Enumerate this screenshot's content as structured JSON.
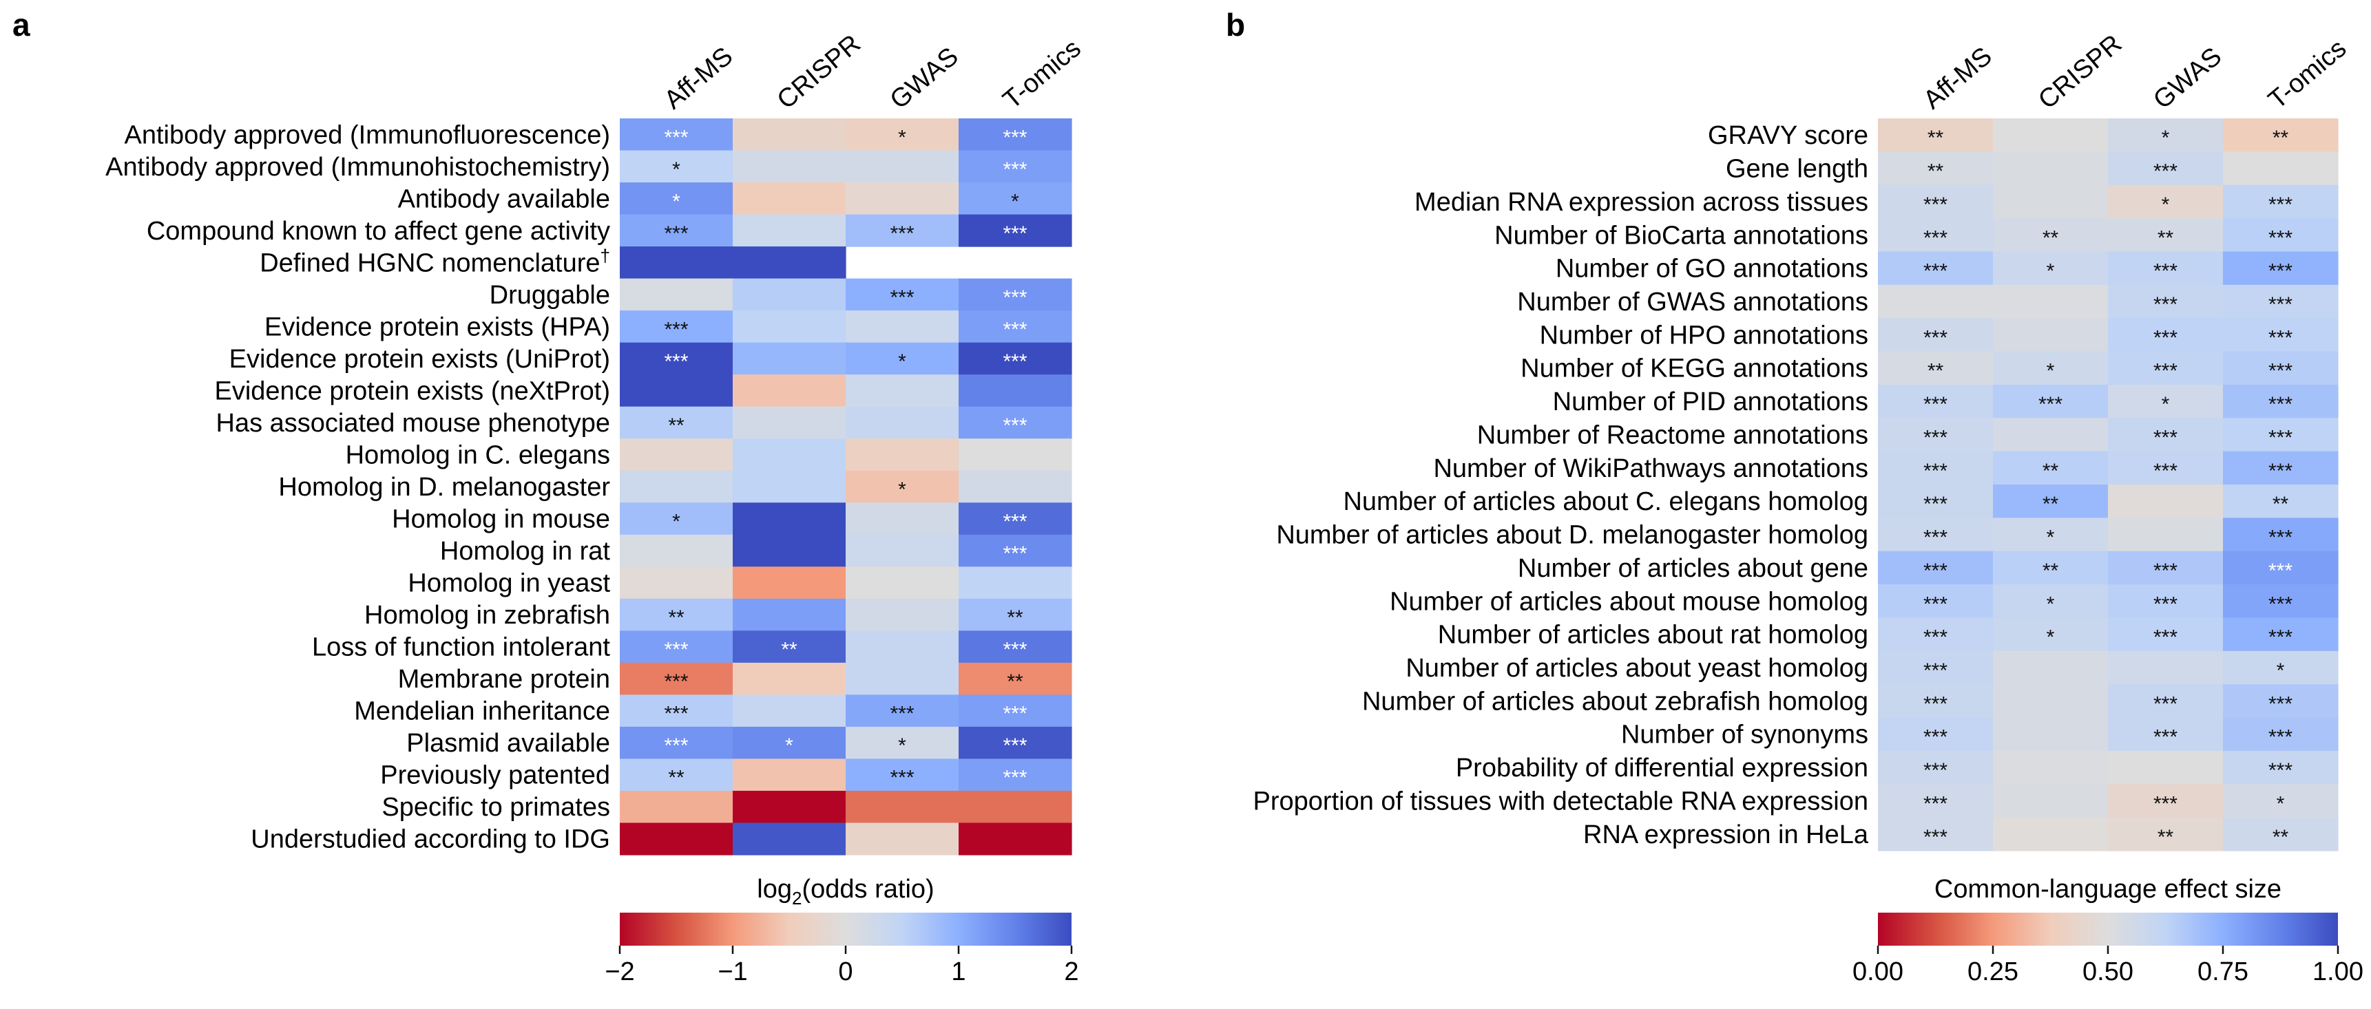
{
  "chart_data": [
    {
      "type": "heatmap",
      "panel_label": "a",
      "columns": [
        "Aff-MS",
        "CRISPR",
        "GWAS",
        "T-omics"
      ],
      "rows": [
        "Antibody approved (Immunofluorescence)",
        "Antibody approved (Immunohistochemistry)",
        "Antibody available",
        "Compound known to affect gene activity",
        "Defined HGNC nomenclature",
        "Druggable",
        "Evidence protein exists (HPA)",
        "Evidence protein exists (UniProt)",
        "Evidence protein exists (neXtProt)",
        "Has associated mouse phenotype",
        "Homolog in C. elegans",
        "Homolog in D. melanogaster",
        "Homolog in mouse",
        "Homolog in rat",
        "Homolog in yeast",
        "Homolog in zebrafish",
        "Loss of function intolerant",
        "Membrane protein",
        "Mendelian inheritance",
        "Plasmid available",
        "Previously patented",
        "Specific to primates",
        "Understudied according to IDG"
      ],
      "row_superscripts": {
        "Defined HGNC nomenclature": "†"
      },
      "values": [
        [
          1.2,
          -0.3,
          -0.4,
          1.4
        ],
        [
          0.5,
          0.2,
          0.2,
          1.2
        ],
        [
          1.3,
          -0.5,
          -0.2,
          1.1
        ],
        [
          1.1,
          0.3,
          0.8,
          2.0
        ],
        [
          2.0,
          2.0,
          null,
          null
        ],
        [
          0.1,
          0.6,
          1.0,
          1.3
        ],
        [
          1.0,
          0.5,
          0.3,
          1.2
        ],
        [
          2.0,
          0.9,
          1.0,
          2.0
        ],
        [
          2.0,
          -0.6,
          0.3,
          1.5
        ],
        [
          0.6,
          0.2,
          0.4,
          1.2
        ],
        [
          -0.2,
          0.5,
          -0.4,
          0.0
        ],
        [
          0.3,
          0.5,
          -0.6,
          0.2
        ],
        [
          0.8,
          2.0,
          0.2,
          1.7
        ],
        [
          0.1,
          2.0,
          0.3,
          1.4
        ],
        [
          -0.1,
          -1.0,
          0.0,
          0.5
        ],
        [
          0.7,
          1.2,
          0.2,
          0.8
        ],
        [
          1.2,
          1.8,
          0.4,
          1.6
        ],
        [
          -1.2,
          -0.5,
          0.4,
          -1.1
        ],
        [
          0.6,
          0.4,
          1.1,
          1.2
        ],
        [
          1.3,
          1.4,
          0.2,
          1.9
        ],
        [
          0.6,
          -0.6,
          1.0,
          1.2
        ],
        [
          -0.8,
          -2.0,
          -1.3,
          -1.3
        ],
        [
          -2.0,
          1.9,
          -0.3,
          -2.0
        ]
      ],
      "annotations": [
        [
          "***",
          "",
          "*",
          "***"
        ],
        [
          "*",
          "",
          "",
          "***"
        ],
        [
          "*",
          "",
          "",
          "*"
        ],
        [
          "***",
          "",
          "***",
          "***"
        ],
        [
          "",
          "",
          "",
          ""
        ],
        [
          "",
          "",
          "***",
          "***"
        ],
        [
          "***",
          "",
          "",
          "***"
        ],
        [
          "***",
          "",
          "*",
          "***"
        ],
        [
          "",
          "",
          "",
          ""
        ],
        [
          "**",
          "",
          "",
          "***"
        ],
        [
          "",
          "",
          "",
          ""
        ],
        [
          "",
          "",
          "*",
          ""
        ],
        [
          "*",
          "",
          "",
          "***"
        ],
        [
          "",
          "",
          "",
          "***"
        ],
        [
          "",
          "",
          "",
          ""
        ],
        [
          "**",
          "",
          "",
          "**"
        ],
        [
          "***",
          "**",
          "",
          "***"
        ],
        [
          "***",
          "",
          "",
          "**"
        ],
        [
          "***",
          "",
          "***",
          "***"
        ],
        [
          "***",
          "*",
          "*",
          "***"
        ],
        [
          "**",
          "",
          "***",
          "***"
        ],
        [
          "",
          "",
          "",
          ""
        ],
        [
          "",
          "",
          "",
          ""
        ]
      ],
      "colorbar": {
        "label_prefix": "log",
        "label_sub": "2",
        "label_suffix": "(odds ratio)",
        "range": [
          -2,
          2
        ],
        "tick_values": [
          -2,
          -1,
          0,
          1,
          2
        ],
        "ticks": [
          "−2",
          "−1",
          "0",
          "1",
          "2"
        ]
      },
      "colormap": "coolwarm_r"
    },
    {
      "type": "heatmap",
      "panel_label": "b",
      "columns": [
        "Aff-MS",
        "CRISPR",
        "GWAS",
        "T-omics"
      ],
      "rows": [
        "GRAVY score",
        "Gene length",
        "Median RNA expression across tissues",
        "Number of BioCarta annotations",
        "Number of GO annotations",
        "Number of GWAS annotations",
        "Number of HPO annotations",
        "Number of KEGG annotations",
        "Number of PID annotations",
        "Number of Reactome annotations",
        "Number of WikiPathways annotations",
        "Number of articles about C. elegans homolog",
        "Number of articles about D. melanogaster homolog",
        "Number of articles about gene",
        "Number of articles about mouse homolog",
        "Number of articles about rat homolog",
        "Number of articles about yeast homolog",
        "Number of articles about zebrafish homolog",
        "Number of synonyms",
        "Probability of differential expression",
        "Proportion of tissues with detectable RNA expression",
        "RNA expression in HeLa"
      ],
      "values": [
        [
          0.42,
          0.5,
          0.55,
          0.38
        ],
        [
          0.53,
          0.52,
          0.58,
          0.5
        ],
        [
          0.57,
          0.52,
          0.45,
          0.62
        ],
        [
          0.57,
          0.54,
          0.54,
          0.64
        ],
        [
          0.66,
          0.58,
          0.62,
          0.74
        ],
        [
          0.51,
          0.51,
          0.6,
          0.61
        ],
        [
          0.57,
          0.53,
          0.63,
          0.63
        ],
        [
          0.53,
          0.57,
          0.62,
          0.65
        ],
        [
          0.6,
          0.65,
          0.56,
          0.69
        ],
        [
          0.58,
          0.54,
          0.6,
          0.63
        ],
        [
          0.59,
          0.64,
          0.61,
          0.72
        ],
        [
          0.59,
          0.72,
          0.48,
          0.62
        ],
        [
          0.58,
          0.57,
          0.52,
          0.77
        ],
        [
          0.7,
          0.64,
          0.67,
          0.8
        ],
        [
          0.65,
          0.6,
          0.64,
          0.78
        ],
        [
          0.61,
          0.59,
          0.63,
          0.74
        ],
        [
          0.6,
          0.53,
          0.56,
          0.59
        ],
        [
          0.59,
          0.53,
          0.6,
          0.67
        ],
        [
          0.61,
          0.53,
          0.6,
          0.68
        ],
        [
          0.58,
          0.51,
          0.5,
          0.6
        ],
        [
          0.56,
          0.52,
          0.44,
          0.54
        ],
        [
          0.56,
          0.49,
          0.46,
          0.57
        ]
      ],
      "annotations": [
        [
          "**",
          "",
          "*",
          "**"
        ],
        [
          "**",
          "",
          "***",
          ""
        ],
        [
          "***",
          "",
          "*",
          "***"
        ],
        [
          "***",
          "**",
          "**",
          "***"
        ],
        [
          "***",
          "*",
          "***",
          "***"
        ],
        [
          "",
          "",
          "***",
          "***"
        ],
        [
          "***",
          "",
          "***",
          "***"
        ],
        [
          "**",
          "*",
          "***",
          "***"
        ],
        [
          "***",
          "***",
          "*",
          "***"
        ],
        [
          "***",
          "",
          "***",
          "***"
        ],
        [
          "***",
          "**",
          "***",
          "***"
        ],
        [
          "***",
          "**",
          "",
          "**"
        ],
        [
          "***",
          "*",
          "",
          "***"
        ],
        [
          "***",
          "**",
          "***",
          "***"
        ],
        [
          "***",
          "*",
          "***",
          "***"
        ],
        [
          "***",
          "*",
          "***",
          "***"
        ],
        [
          "***",
          "",
          "",
          "*"
        ],
        [
          "***",
          "",
          "***",
          "***"
        ],
        [
          "***",
          "",
          "***",
          "***"
        ],
        [
          "***",
          "",
          "",
          "***"
        ],
        [
          "***",
          "",
          "***",
          "*"
        ],
        [
          "***",
          "",
          "**",
          "**"
        ]
      ],
      "colorbar": {
        "label": "Common-language effect size",
        "range": [
          0,
          1
        ],
        "tick_values": [
          0,
          0.25,
          0.5,
          0.75,
          1
        ],
        "ticks": [
          "0.00",
          "0.25",
          "0.50",
          "0.75",
          "1.00"
        ]
      },
      "colormap": "coolwarm_r"
    }
  ]
}
